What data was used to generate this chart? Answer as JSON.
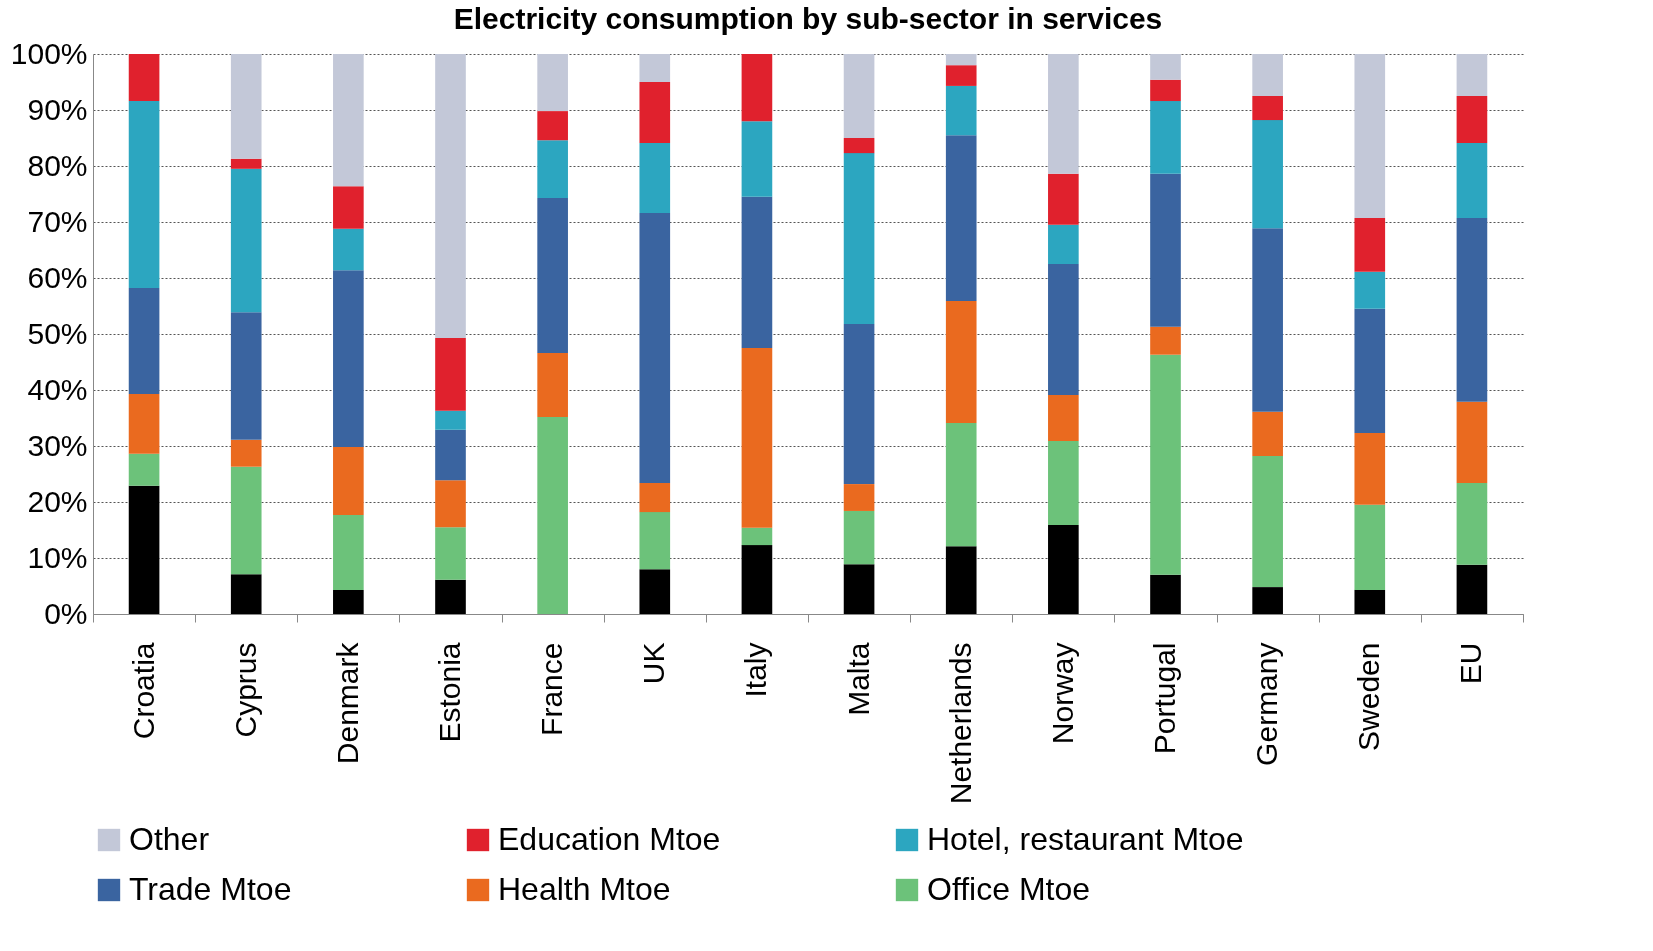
{
  "chart_data": {
    "type": "bar",
    "title": "Electricity consumption by sub-sector in services",
    "stacked": true,
    "categories": [
      "Croatia",
      "Cyprus",
      "Denmark",
      "Estonia",
      "France",
      "UK",
      "Italy",
      "Malta",
      "Netherlands",
      "Norway",
      "Portugal",
      "Germany",
      "Sweden",
      "EU"
    ],
    "series": [
      {
        "color": "#000000",
        "values": [
          22.9,
          7.1,
          4.3,
          6.1,
          0,
          8.0,
          12.3,
          8.9,
          12.1,
          15.9,
          7.0,
          4.8,
          4.3,
          8.8
        ]
      },
      {
        "name": "Office Mtoe",
        "color": "#6cc27a",
        "values": [
          5.7,
          19.2,
          13.4,
          9.4,
          35.2,
          10.2,
          3.1,
          9.5,
          22.0,
          15.0,
          39.3,
          23.4,
          15.2,
          14.6
        ]
      },
      {
        "name": "Health Mtoe",
        "color": "#ea6a1f",
        "values": [
          10.7,
          4.8,
          12.1,
          8.4,
          11.4,
          5.2,
          32.1,
          4.8,
          21.8,
          8.2,
          5.0,
          7.9,
          12.8,
          14.5
        ]
      },
      {
        "name": "Trade Mtoe",
        "color": "#3a64a0",
        "values": [
          18.9,
          22.8,
          31.6,
          9.0,
          27.7,
          48.2,
          27.0,
          28.6,
          29.6,
          23.4,
          27.3,
          32.8,
          22.2,
          32.8
        ]
      },
      {
        "name": "Hotel, restaurant Mtoe",
        "color": "#2ca6c0",
        "values": [
          33.4,
          25.6,
          7.4,
          3.4,
          10.3,
          12.5,
          13.5,
          30.5,
          8.8,
          7.0,
          13.0,
          19.3,
          6.6,
          13.4
        ]
      },
      {
        "name": "Education Mtoe",
        "color": "#e0212d",
        "values": [
          8.4,
          1.8,
          7.6,
          13.0,
          5.2,
          10.9,
          12.0,
          2.7,
          3.7,
          9.1,
          3.8,
          4.3,
          9.6,
          8.4
        ]
      },
      {
        "name": "Other",
        "color": "#c3c8d8",
        "values": [
          0,
          18.7,
          23.6,
          50.7,
          10.2,
          5.0,
          0,
          15.0,
          2.0,
          21.4,
          4.6,
          7.5,
          29.3,
          7.5
        ]
      }
    ],
    "ylim": [
      0,
      100
    ],
    "yticks": [
      {
        "value": 0,
        "label": "0%"
      },
      {
        "value": 10,
        "label": "10%"
      },
      {
        "value": 20,
        "label": "20%"
      },
      {
        "value": 30,
        "label": "30%"
      },
      {
        "value": 40,
        "label": "40%"
      },
      {
        "value": 50,
        "label": "50%"
      },
      {
        "value": 60,
        "label": "60%"
      },
      {
        "value": 70,
        "label": "70%"
      },
      {
        "value": 80,
        "label": "80%"
      },
      {
        "value": 90,
        "label": "90%"
      },
      {
        "value": 100,
        "label": "100%"
      }
    ],
    "grid": "y",
    "legend": "bottom"
  }
}
